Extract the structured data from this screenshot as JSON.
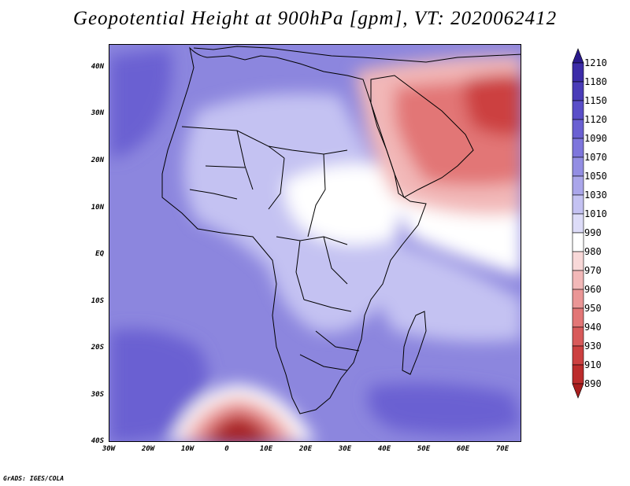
{
  "title": "Geopotential Height at 900hPa [gpm], VT: 2020062412",
  "footer": "GrADS: IGES/COLA",
  "axes": {
    "lat_labels": [
      "40N",
      "30N",
      "20N",
      "10N",
      "EQ",
      "10S",
      "20S",
      "30S",
      "40S"
    ],
    "lon_labels": [
      "30W",
      "20W",
      "10W",
      "0",
      "10E",
      "20E",
      "30E",
      "40E",
      "50E",
      "60E",
      "70E"
    ]
  },
  "colorbar": {
    "levels": [
      "1210",
      "1180",
      "1150",
      "1120",
      "1090",
      "1070",
      "1050",
      "1030",
      "1010",
      "990",
      "980",
      "970",
      "960",
      "950",
      "940",
      "930",
      "910",
      "890"
    ],
    "colors": {
      "max_arrow": "#2a1a8c",
      "high": [
        "#3c2ca8",
        "#4a3cb8",
        "#5a4ec8",
        "#6a60d2",
        "#7e76dc",
        "#938ee3",
        "#aaa6ea",
        "#c4c2f2",
        "#dddcf8"
      ],
      "white": "#ffffff",
      "low": [
        "#f8d8d8",
        "#f2b8b8",
        "#ea9696",
        "#e27676",
        "#d85a5a",
        "#cc4040",
        "#bc2c2c"
      ],
      "min_arrow": "#a81e1e"
    }
  },
  "map_colors": {
    "ocean_base": "#8c86de",
    "deep_low_south": "#6a60d2",
    "land_light": "#c4c2f2",
    "white_band": "#ffffff",
    "arabia_pink": "#f2b8b8",
    "arabia_red": "#e27676",
    "iran_dark_red": "#cc4040",
    "south_low_core": "#a81e1e",
    "coastline": "#000000"
  }
}
